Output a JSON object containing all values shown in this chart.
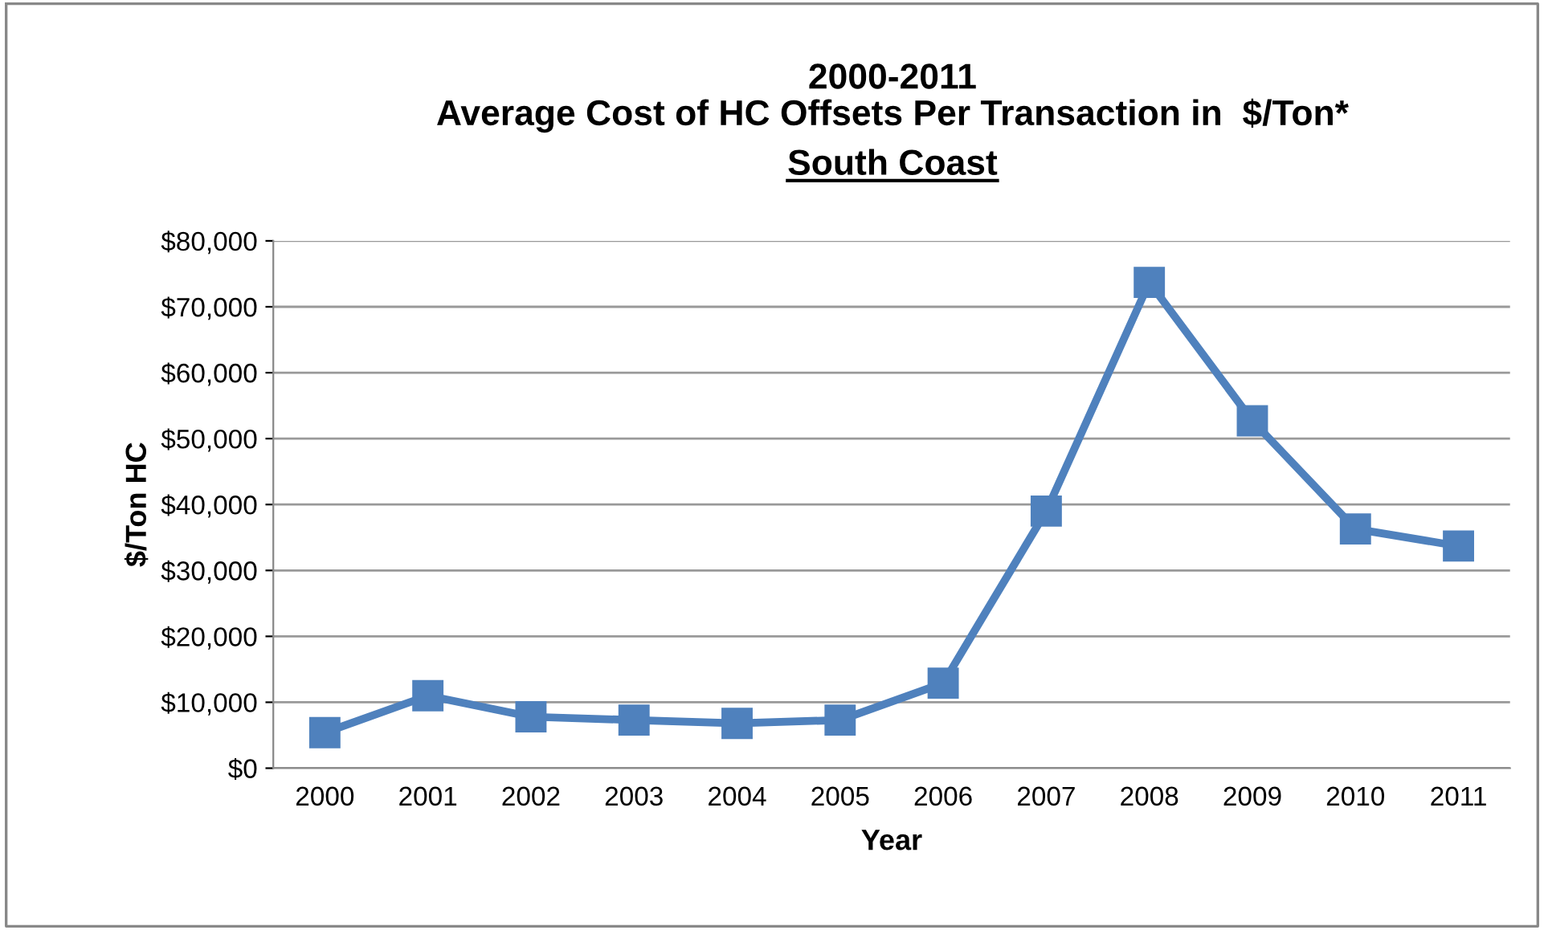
{
  "chart_data": {
    "type": "line",
    "title": "2000-2011\nAverage Cost of HC Offsets Per Transaction in  $/Ton*",
    "subtitle": "South Coast",
    "xlabel": "Year",
    "ylabel": "$/Ton HC",
    "categories": [
      "2000",
      "2001",
      "2002",
      "2003",
      "2004",
      "2005",
      "2006",
      "2007",
      "2008",
      "2009",
      "2010",
      "2011"
    ],
    "series": [
      {
        "color": "#4f81bd",
        "values": [
          5400,
          11000,
          7800,
          7300,
          6800,
          7300,
          12900,
          39000,
          73700,
          52700,
          36300,
          33700
        ]
      }
    ],
    "ylim": [
      0,
      80000
    ],
    "yticks": [
      {
        "value": 0,
        "label": "$0"
      },
      {
        "value": 10000,
        "label": "$10,000"
      },
      {
        "value": 20000,
        "label": "$20,000"
      },
      {
        "value": 30000,
        "label": "$30,000"
      },
      {
        "value": 40000,
        "label": "$40,000"
      },
      {
        "value": 50000,
        "label": "$50,000"
      },
      {
        "value": 60000,
        "label": "$60,000"
      },
      {
        "value": 70000,
        "label": "$70,000"
      },
      {
        "value": 80000,
        "label": "$80,000"
      }
    ],
    "grid": "y",
    "marker": "square",
    "line_style": "solid",
    "legend": false
  }
}
